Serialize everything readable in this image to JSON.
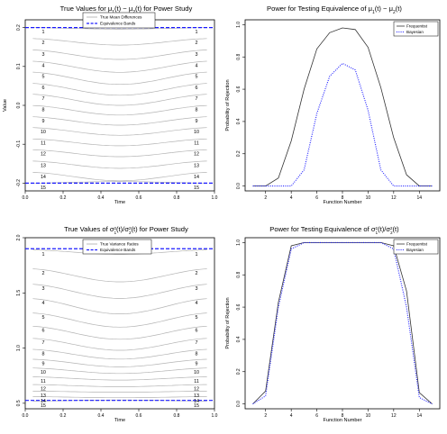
{
  "chart_data": [
    {
      "type": "line",
      "panel": "top-left",
      "title_parts": [
        "True Values for ",
        "μ",
        "1",
        "(t) − ",
        "μ",
        "2",
        "(t) for Power Study"
      ],
      "xlabel": "Time",
      "ylabel": "Value",
      "xlim": [
        0.0,
        1.0
      ],
      "ylim": [
        -0.22,
        0.22
      ],
      "xticks": [
        "0.0",
        "0.2",
        "0.4",
        "0.6",
        "0.8",
        "1.0"
      ],
      "yticks": [
        "-0.2",
        "-0.1",
        "0.0",
        "0.1",
        "0.2"
      ],
      "ytick_values": [
        -0.2,
        -0.1,
        0.0,
        0.1,
        0.2
      ],
      "curve_labels": [
        "1",
        "2",
        "3",
        "4",
        "5",
        "6",
        "7",
        "8",
        "9",
        "10",
        "11",
        "12",
        "13",
        "14",
        "15"
      ],
      "curve_end_values": [
        0.2,
        0.172,
        0.143,
        0.114,
        0.086,
        0.057,
        0.029,
        0.0,
        -0.029,
        -0.057,
        -0.086,
        -0.114,
        -0.143,
        -0.172,
        -0.2
      ],
      "curve_center_values": [
        0.196,
        0.155,
        0.118,
        0.085,
        0.054,
        0.026,
        0.0,
        -0.025,
        -0.051,
        -0.077,
        -0.104,
        -0.132,
        -0.162,
        -0.194,
        -0.196
      ],
      "equivalence_band": [
        -0.2,
        0.2
      ],
      "legend": [
        "True Mean Differences",
        "Equivalence Bands"
      ],
      "legend_position": "top"
    },
    {
      "type": "line",
      "panel": "top-right",
      "title_parts": [
        "Power for Testing Equivalence of ",
        "μ",
        "1",
        "(t) − ",
        "μ",
        "2",
        "(t)"
      ],
      "xlabel": "Function Number",
      "ylabel": "Probability of Rejection",
      "xlim": [
        0.4,
        15.6
      ],
      "ylim": [
        -0.03,
        1.03
      ],
      "xticks": [
        "2",
        "4",
        "6",
        "8",
        "10",
        "12",
        "14"
      ],
      "yticks": [
        "0.0",
        "0.2",
        "0.4",
        "0.6",
        "0.8",
        "1.0"
      ],
      "x": [
        1,
        2,
        3,
        4,
        5,
        6,
        7,
        8,
        9,
        10,
        11,
        12,
        13,
        14,
        15
      ],
      "series": [
        {
          "name": "Frequentist",
          "style": "solid",
          "color": "#333333",
          "values": [
            0.0,
            0.0,
            0.05,
            0.28,
            0.6,
            0.85,
            0.95,
            0.98,
            0.97,
            0.86,
            0.61,
            0.3,
            0.07,
            0.0,
            0.0
          ]
        },
        {
          "name": "Bayesian",
          "style": "dotted",
          "color": "#1a1aff",
          "values": [
            0.0,
            0.0,
            0.0,
            0.0,
            0.1,
            0.45,
            0.68,
            0.76,
            0.72,
            0.47,
            0.1,
            0.0,
            0.0,
            0.0,
            0.0
          ]
        }
      ],
      "legend_position": "top-right"
    },
    {
      "type": "line",
      "panel": "bottom-left",
      "title_parts": [
        "True Values of ",
        "σ",
        "2",
        "1",
        "(t)/",
        "σ",
        "2",
        "2",
        "(t) for Power Study"
      ],
      "xlabel": "Time",
      "ylabel": "",
      "xlim": [
        0.0,
        1.0
      ],
      "ylim": [
        0.45,
        2.0
      ],
      "xticks": [
        "0.0",
        "0.2",
        "0.4",
        "0.6",
        "0.8",
        "1.0"
      ],
      "yticks": [
        "0.5",
        "1.0",
        "1.5",
        "2.0"
      ],
      "ytick_values": [
        0.5,
        1.0,
        1.5,
        2.0
      ],
      "curve_labels": [
        "1",
        "2",
        "3",
        "4",
        "5",
        "6",
        "7",
        "8",
        "9",
        "10",
        "11",
        "12",
        "13",
        "14",
        "15"
      ],
      "curve_end_values": [
        1.89,
        1.72,
        1.58,
        1.45,
        1.32,
        1.2,
        1.09,
        0.99,
        0.9,
        0.82,
        0.74,
        0.67,
        0.61,
        0.56,
        0.52
      ],
      "curve_center_values": [
        1.85,
        1.6,
        1.45,
        1.31,
        1.19,
        1.08,
        0.98,
        0.9,
        0.83,
        0.77,
        0.71,
        0.65,
        0.6,
        0.55,
        0.53
      ],
      "equivalence_band": [
        0.526,
        1.9
      ],
      "legend": [
        "True Variance Ratios",
        "Equivalence Bands"
      ],
      "legend_position": "top"
    },
    {
      "type": "line",
      "panel": "bottom-right",
      "title_parts": [
        "Power for Testing Equivalence of ",
        "σ",
        "2",
        "1",
        "(t)/",
        "σ",
        "2",
        "2",
        "(t)"
      ],
      "xlabel": "Function Number",
      "ylabel": "Probability of Rejection",
      "xlim": [
        0.4,
        15.6
      ],
      "ylim": [
        -0.03,
        1.03
      ],
      "xticks": [
        "2",
        "4",
        "6",
        "8",
        "10",
        "12",
        "14"
      ],
      "yticks": [
        "0.0",
        "0.2",
        "0.4",
        "0.6",
        "0.8",
        "1.0"
      ],
      "x": [
        1,
        2,
        3,
        4,
        5,
        6,
        7,
        8,
        9,
        10,
        11,
        12,
        13,
        14,
        15
      ],
      "series": [
        {
          "name": "Frequentist",
          "style": "solid",
          "color": "#333333",
          "values": [
            0.0,
            0.08,
            0.63,
            0.98,
            1.0,
            1.0,
            1.0,
            1.0,
            1.0,
            1.0,
            1.0,
            0.98,
            0.7,
            0.07,
            0.0
          ]
        },
        {
          "name": "Bayesian",
          "style": "dotted",
          "color": "#1a1aff",
          "values": [
            0.0,
            0.05,
            0.6,
            0.96,
            1.0,
            1.0,
            1.0,
            1.0,
            1.0,
            1.0,
            1.0,
            0.96,
            0.6,
            0.04,
            0.0
          ]
        }
      ],
      "legend_position": "top-right"
    }
  ]
}
